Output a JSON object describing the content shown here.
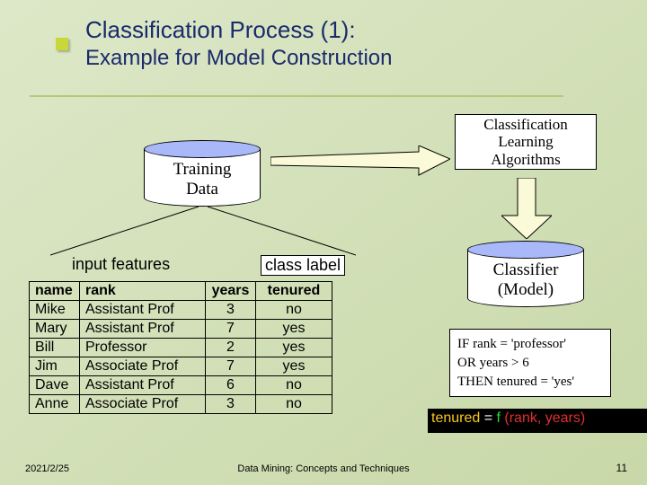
{
  "title": {
    "line1": "Classification Process (1):",
    "line2": "Example for Model Construction"
  },
  "training_data_label": "Training\nData",
  "algo_box": "Classification\nLearning\nAlgorithms",
  "classifier_label": "Classifier\n(Model)",
  "input_features_label": "input features",
  "class_label_label": "class label",
  "table": {
    "headers": [
      "name",
      "rank",
      "years",
      "tenured"
    ],
    "rows": [
      [
        "Mike",
        "Assistant Prof",
        "3",
        "no"
      ],
      [
        "Mary",
        "Assistant Prof",
        "7",
        "yes"
      ],
      [
        "Bill",
        "Professor",
        "2",
        "yes"
      ],
      [
        "Jim",
        "Associate Prof",
        "7",
        "yes"
      ],
      [
        "Dave",
        "Assistant Prof",
        "6",
        "no"
      ],
      [
        "Anne",
        "Associate Prof",
        "3",
        "no"
      ]
    ]
  },
  "rule": {
    "line1": "IF rank = 'professor'",
    "line2": "OR years > 6",
    "line3": "THEN tenured = 'yes'"
  },
  "equation": {
    "lhs": "tenured",
    "eq": " = ",
    "f": "f ",
    "paren_open": "(",
    "arg1": "rank",
    "comma": ", ",
    "arg2": "years",
    "paren_close": ")",
    "colors": {
      "lhs": "#f8c820",
      "eq": "#ffffff",
      "f": "#30d830",
      "paren": "#e03030",
      "args": "#e03030",
      "comma": "#e03030"
    }
  },
  "footer": {
    "date": "2021/2/25",
    "center": "Data Mining: Concepts and Techniques",
    "page": "11"
  },
  "arrow_colors": {
    "fill": "#fafad8",
    "stroke": "#000000"
  }
}
